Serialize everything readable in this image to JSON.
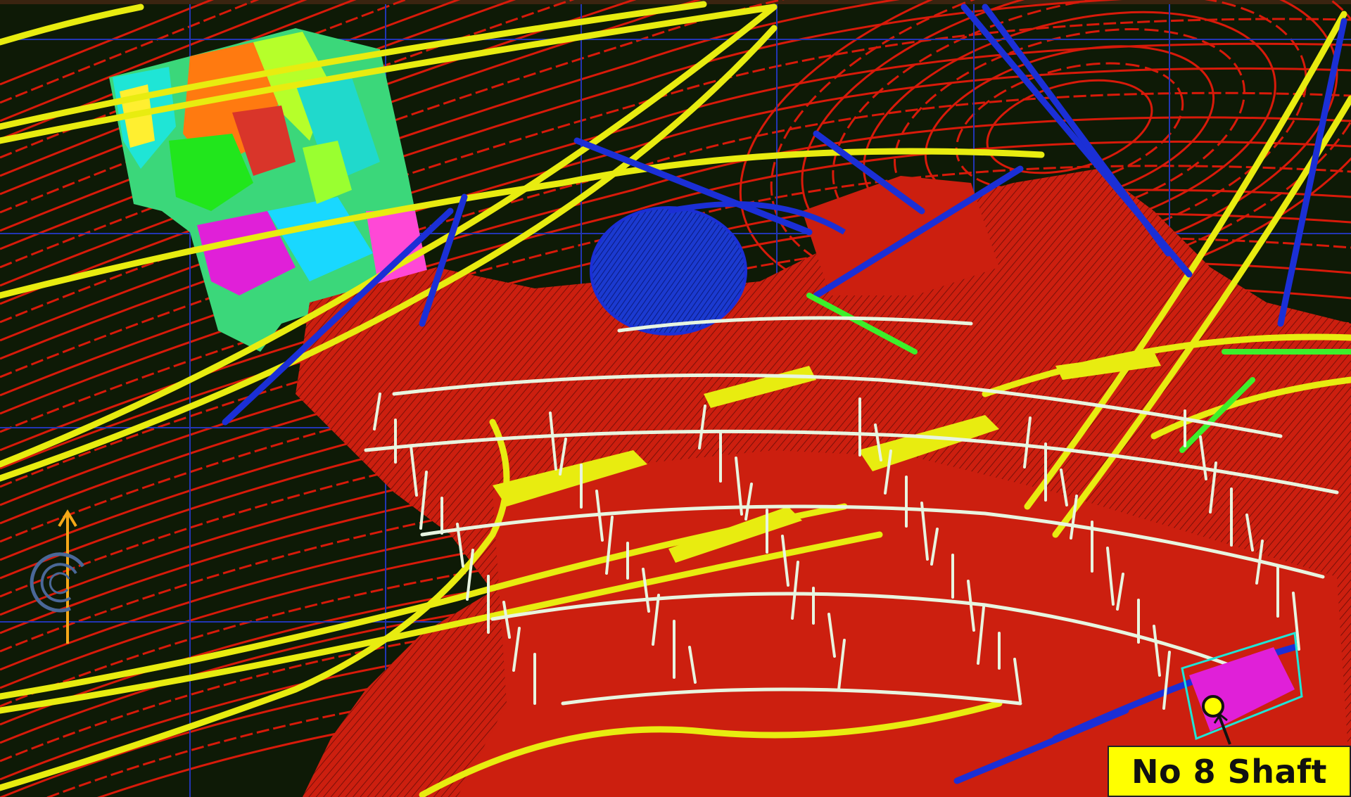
{
  "map": {
    "shaft_label": "No 8 Shaft",
    "north_arrow_icon": "north-arrow-icon",
    "shaft_marker_icon": "shaft-location-icon",
    "colors": {
      "background": "#0e1a06",
      "contours": "#d81a0a",
      "workings_fill": "#cc1f0f",
      "tunnels": "#e8f5e0",
      "roads": "#e8ec10",
      "faults": "#1b2fd6",
      "grid": "#2236b4",
      "label_bg": "#ffff00",
      "north_arrow": "#f5a818"
    }
  }
}
